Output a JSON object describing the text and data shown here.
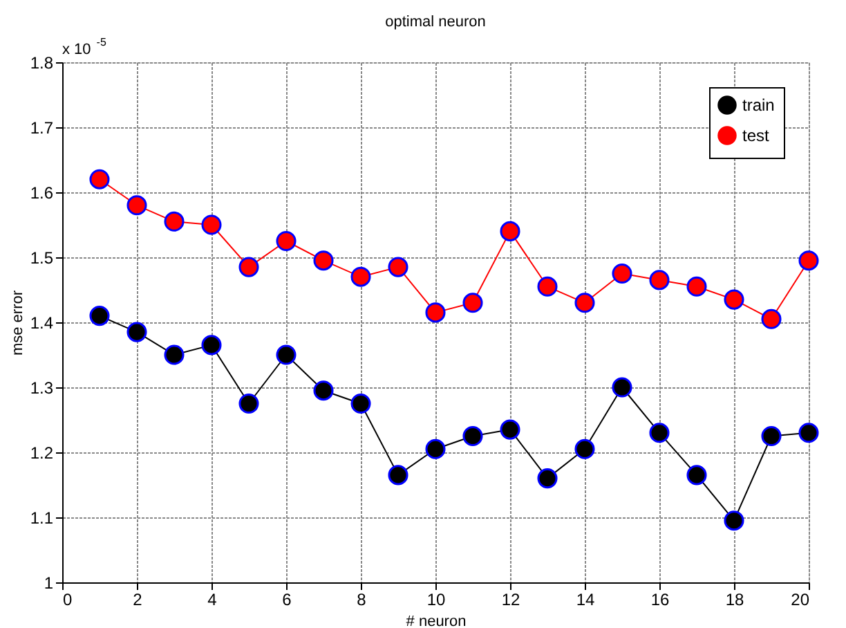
{
  "chart_data": {
    "type": "line",
    "title": "optimal neuron",
    "xlabel": "# neuron",
    "ylabel": "mse error",
    "annotations": [
      "x 10$^{-5}$"
    ],
    "x": [
      1,
      2,
      3,
      4,
      5,
      6,
      7,
      8,
      9,
      10,
      11,
      12,
      13,
      14,
      15,
      16,
      17,
      18,
      19,
      20
    ],
    "series": [
      {
        "name": "train",
        "color": "#000000",
        "values": [
          1.41,
          1.385,
          1.35,
          1.365,
          1.275,
          1.35,
          1.295,
          1.275,
          1.165,
          1.205,
          1.225,
          1.235,
          1.16,
          1.205,
          1.3,
          1.23,
          1.165,
          1.095,
          1.225,
          1.23
        ]
      },
      {
        "name": "test",
        "color": "#ff0000",
        "values": [
          1.62,
          1.58,
          1.555,
          1.55,
          1.485,
          1.525,
          1.495,
          1.47,
          1.485,
          1.415,
          1.43,
          1.54,
          1.455,
          1.43,
          1.475,
          1.465,
          1.455,
          1.435,
          1.405,
          1.495
        ]
      }
    ],
    "xlim": [
      0,
      20
    ],
    "xticks": [
      0,
      2,
      4,
      6,
      8,
      10,
      12,
      14,
      16,
      18,
      20
    ],
    "ylim": [
      1,
      1.8
    ],
    "yticks": [
      1,
      1.1,
      1.2,
      1.3,
      1.4,
      1.5,
      1.6,
      1.7,
      1.8
    ],
    "grid": true,
    "legend": "top right",
    "marker": "circle",
    "line_style": "solid"
  }
}
